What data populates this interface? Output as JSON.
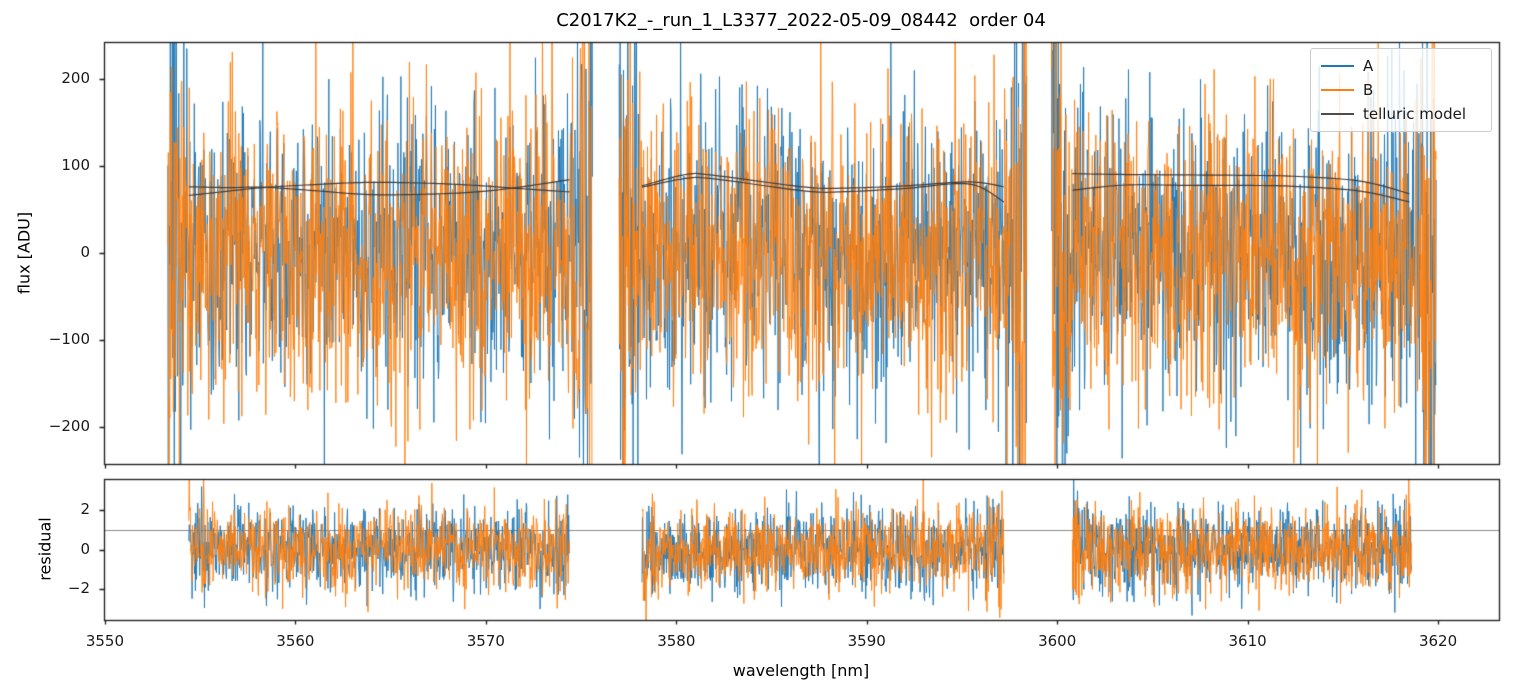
{
  "figure": {
    "title": "C2017K2_-_run_1_L3377_2022-05-09_08442  order 04",
    "flux_axis_label": "flux [ADU]",
    "residual_axis_label": "residual",
    "wavelength_axis_label": "wavelength [nm]"
  },
  "legend": {
    "position": "upper right",
    "entries": [
      {
        "label": "A",
        "color": "#1f77b4"
      },
      {
        "label": "B",
        "color": "#ff7f0e"
      },
      {
        "label": "telluric model",
        "color": "#4d4d4d"
      }
    ]
  },
  "colors": {
    "series_a": "#1f77b4",
    "series_b": "#ff7f0e",
    "telluric_model": "#3c3c3c",
    "spine": "#1a1a1a",
    "reference_line": "#8a8a8a"
  },
  "chart_data": [
    {
      "id": "flux-panel",
      "type": "line",
      "title": "C2017K2_-_run_1_L3377_2022-05-09_08442  order 04",
      "xlabel": "",
      "ylabel": "flux [ADU]",
      "xlim": [
        3549.95,
        3623.2
      ],
      "ylim": [
        -242,
        242
      ],
      "xticks": [
        3550,
        3560,
        3570,
        3580,
        3590,
        3600,
        3610,
        3620
      ],
      "xtick_labels": [
        "",
        "",
        "",
        "",
        "",
        "",
        "",
        ""
      ],
      "yticks": [
        200,
        100,
        0,
        -100,
        -200
      ],
      "ytick_labels": [
        "200",
        "100",
        "0",
        "−100",
        "−200"
      ],
      "grid": false,
      "legend_position": "upper right",
      "segments": [
        [
          3553.3,
          3575.6
        ],
        [
          3577.0,
          3598.4
        ],
        [
          3599.7,
          3619.9
        ]
      ],
      "noise_series": [
        {
          "name": "A",
          "color": "#1f77b4",
          "mean": 0,
          "sigma": 85,
          "edge_sigma_factor": 2.6,
          "points_per_segment": 850,
          "seed": 11
        },
        {
          "name": "B",
          "color": "#ff7f0e",
          "mean": 0,
          "sigma": 85,
          "edge_sigma_factor": 2.6,
          "points_per_segment": 850,
          "seed": 77
        }
      ],
      "telluric_model": {
        "name": "telluric model",
        "color": "#3c3c3c",
        "lines": [
          {
            "points": [
              [
                3554.4,
                76
              ],
              [
                3556.5,
                75
              ],
              [
                3558.3,
                75.5
              ],
              [
                3561,
                71.5
              ],
              [
                3563.9,
                67
              ],
              [
                3567,
                67.5
              ],
              [
                3569.5,
                70
              ],
              [
                3571.4,
                74.5
              ],
              [
                3574.4,
                84
              ]
            ]
          },
          {
            "points": [
              [
                3554.4,
                66
              ],
              [
                3556.5,
                71
              ],
              [
                3558.3,
                75
              ],
              [
                3561,
                78.5
              ],
              [
                3563.9,
                81
              ],
              [
                3567,
                80
              ],
              [
                3569.5,
                77.5
              ],
              [
                3571.4,
                74.5
              ],
              [
                3574.4,
                70
              ]
            ]
          },
          {
            "points": [
              [
                3578.2,
                77
              ],
              [
                3580.5,
                90
              ],
              [
                3582,
                89
              ],
              [
                3586.8,
                75.5
              ],
              [
                3589,
                74.5
              ],
              [
                3592,
                77
              ],
              [
                3595.4,
                81.5
              ],
              [
                3597.2,
                76
              ]
            ]
          },
          {
            "points": [
              [
                3578.2,
                75.5
              ],
              [
                3580.5,
                85.5
              ],
              [
                3582,
                85
              ],
              [
                3586.8,
                71
              ],
              [
                3589,
                70.5
              ],
              [
                3592,
                74
              ],
              [
                3595.4,
                79
              ],
              [
                3597.2,
                58.5
              ]
            ]
          },
          {
            "points": [
              [
                3600.8,
                91
              ],
              [
                3603.6,
                90
              ],
              [
                3607,
                89.5
              ],
              [
                3610,
                89
              ],
              [
                3612.4,
                88
              ],
              [
                3615.9,
                82.5
              ],
              [
                3618.5,
                68
              ]
            ]
          },
          {
            "points": [
              [
                3600.8,
                72
              ],
              [
                3603.6,
                78
              ],
              [
                3607,
                77.5
              ],
              [
                3610,
                77.5
              ],
              [
                3612.4,
                76.5
              ],
              [
                3615.9,
                71
              ],
              [
                3618.5,
                58.5
              ]
            ]
          }
        ]
      }
    },
    {
      "id": "residual-panel",
      "type": "line",
      "title": "",
      "xlabel": "wavelength [nm]",
      "ylabel": "residual",
      "xlim": [
        3549.95,
        3623.2
      ],
      "ylim": [
        -3.55,
        3.55
      ],
      "xticks": [
        3550,
        3560,
        3570,
        3580,
        3590,
        3600,
        3610,
        3620
      ],
      "xtick_labels": [
        "3550",
        "3560",
        "3570",
        "3580",
        "3590",
        "3600",
        "3610",
        "3620"
      ],
      "yticks": [
        2,
        0,
        -2
      ],
      "ytick_labels": [
        "2",
        "0",
        "−2"
      ],
      "grid": false,
      "reference_hline": {
        "y": 1,
        "color": "#8a8a8a"
      },
      "segments": [
        [
          3554.4,
          3574.4
        ],
        [
          3578.2,
          3597.2
        ],
        [
          3600.8,
          3618.6
        ]
      ],
      "noise_series": [
        {
          "name": "A",
          "color": "#1f77b4",
          "mean": 0,
          "sigma": 1.05,
          "edge_sigma_factor": 1.5,
          "points_per_segment": 800,
          "seed": 5
        },
        {
          "name": "B",
          "color": "#ff7f0e",
          "mean": 0,
          "sigma": 1.05,
          "edge_sigma_factor": 1.5,
          "points_per_segment": 800,
          "seed": 23
        }
      ]
    }
  ]
}
